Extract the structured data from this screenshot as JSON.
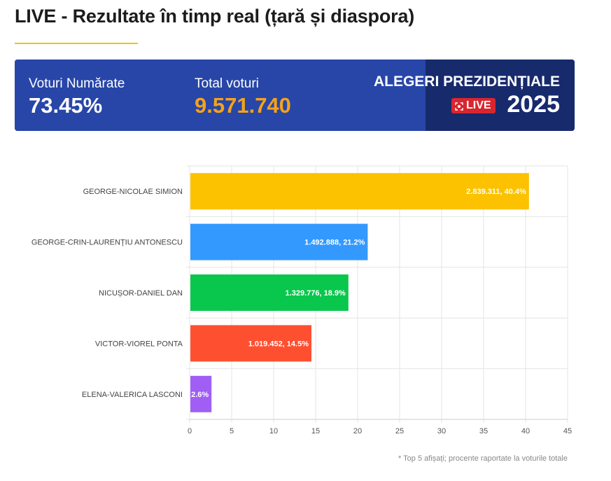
{
  "header": {
    "title": "LIVE - Rezultate în timp real (țară și diaspora)"
  },
  "stats": {
    "counted_label": "Voturi Numărate",
    "counted_value": "73.45%",
    "total_label": "Total voturi",
    "total_value": "9.571.740",
    "election_title": "ALEGERI PREZIDENȚIALE",
    "live_badge": "LIVE",
    "year": "2025"
  },
  "colors": {
    "title_underline": "#f2c200",
    "panel_bg": "#2746a8",
    "panel_dark": "#172a6c",
    "total_value": "#f5a21b",
    "live_badge": "#d8262f"
  },
  "icons": {
    "live": "broadcast-icon"
  },
  "chart_data": {
    "type": "bar",
    "orientation": "horizontal",
    "categories": [
      "GEORGE-NICOLAE SIMION",
      "GEORGE-CRIN-LAURENȚIU ANTONESCU",
      "NICUȘOR-DANIEL DAN",
      "VICTOR-VIOREL PONTA",
      "ELENA-VALERICA LASCONI"
    ],
    "values": [
      40.4,
      21.2,
      18.9,
      14.5,
      2.6
    ],
    "data_labels": [
      "2.839.311, 40.4%",
      "1.492.888, 21.2%",
      "1.329.776, 18.9%",
      "1.019.452, 14.5%",
      "2.6%"
    ],
    "colors": [
      "#fcc200",
      "#3399ff",
      "#09c74c",
      "#fe5031",
      "#a05ef4"
    ],
    "xlim": [
      0,
      45
    ],
    "xticks": [
      0,
      5,
      10,
      15,
      20,
      25,
      30,
      35,
      40,
      45
    ],
    "grid": true,
    "legend": "none"
  },
  "footnote": "* Top 5 afișați; procente raportate la voturile totale"
}
